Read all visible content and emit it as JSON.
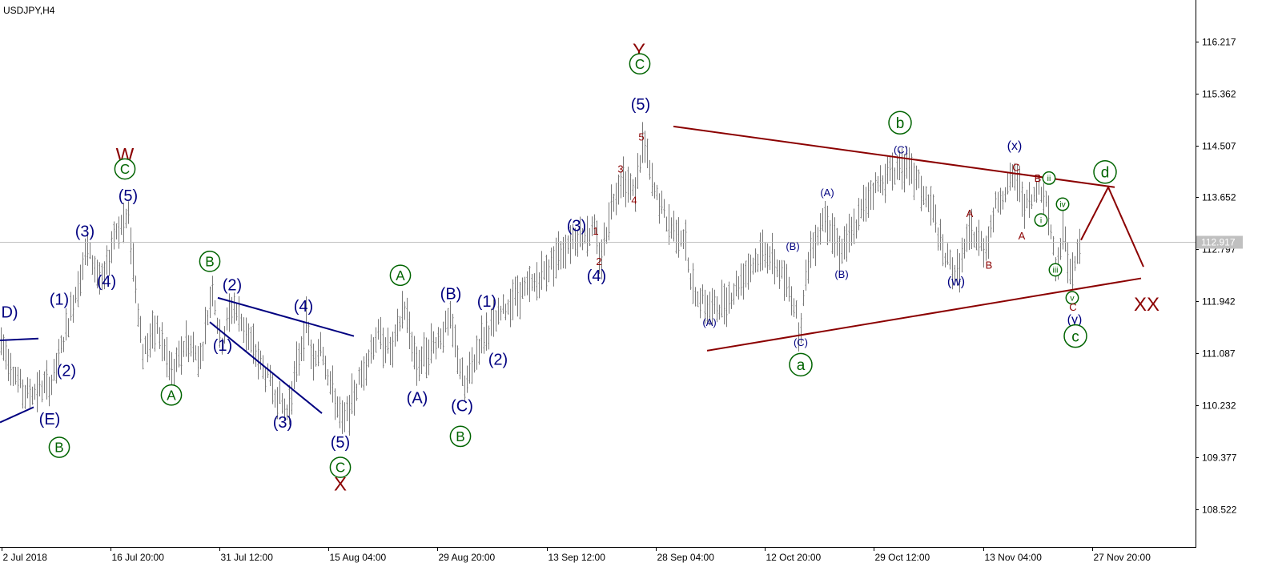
{
  "chart_data": {
    "type": "candlestick",
    "symbol_label": "USDJPY,H4",
    "current_price": "112.917",
    "y_ticks": [
      "116.217",
      "115.362",
      "114.507",
      "113.652",
      "112.797",
      "111.942",
      "111.087",
      "110.232",
      "109.377",
      "108.522"
    ],
    "x_ticks": [
      "2 Jul 2018",
      "16 Jul 20:00",
      "31 Jul 12:00",
      "15 Aug 04:00",
      "29 Aug 20:00",
      "13 Sep 12:00",
      "28 Sep 04:00",
      "12 Oct 20:00",
      "29 Oct 12:00",
      "13 Nov 04:00",
      "27 Nov 20:00"
    ],
    "ylim": [
      107.9,
      116.9
    ],
    "xlim": [
      0,
      1493
    ],
    "price_path": [
      [
        0,
        111.3
      ],
      [
        30,
        110.4
      ],
      [
        65,
        110.6
      ],
      [
        108,
        112.8
      ],
      [
        128,
        112.2
      ],
      [
        143,
        113.1
      ],
      [
        160,
        113.3
      ],
      [
        178,
        111.1
      ],
      [
        196,
        111.5
      ],
      [
        215,
        110.7
      ],
      [
        232,
        111.3
      ],
      [
        250,
        111.0
      ],
      [
        265,
        112.2
      ],
      [
        275,
        111.2
      ],
      [
        290,
        111.9
      ],
      [
        305,
        111.5
      ],
      [
        325,
        110.9
      ],
      [
        358,
        110.1
      ],
      [
        382,
        111.6
      ],
      [
        392,
        110.8
      ],
      [
        400,
        111.3
      ],
      [
        412,
        110.6
      ],
      [
        428,
        109.9
      ],
      [
        450,
        110.7
      ],
      [
        470,
        111.4
      ],
      [
        490,
        111.1
      ],
      [
        504,
        111.9
      ],
      [
        520,
        110.9
      ],
      [
        545,
        111.3
      ],
      [
        562,
        111.6
      ],
      [
        580,
        110.5
      ],
      [
        600,
        111.3
      ],
      [
        618,
        111.6
      ],
      [
        640,
        112.0
      ],
      [
        665,
        112.2
      ],
      [
        690,
        112.6
      ],
      [
        715,
        113.0
      ],
      [
        742,
        113.1
      ],
      [
        750,
        112.6
      ],
      [
        762,
        113.5
      ],
      [
        776,
        114.0
      ],
      [
        792,
        113.7
      ],
      [
        803,
        114.6
      ],
      [
        815,
        113.8
      ],
      [
        835,
        113.2
      ],
      [
        855,
        113.0
      ],
      [
        862,
        112.2
      ],
      [
        880,
        111.9
      ],
      [
        890,
        111.8
      ],
      [
        910,
        112.0
      ],
      [
        930,
        112.4
      ],
      [
        955,
        112.8
      ],
      [
        975,
        112.4
      ],
      [
        990,
        112.0
      ],
      [
        998,
        111.4
      ],
      [
        1010,
        112.7
      ],
      [
        1030,
        113.4
      ],
      [
        1048,
        112.8
      ],
      [
        1062,
        113.0
      ],
      [
        1085,
        113.7
      ],
      [
        1105,
        114.0
      ],
      [
        1127,
        114.2
      ],
      [
        1145,
        113.9
      ],
      [
        1165,
        113.4
      ],
      [
        1178,
        112.7
      ],
      [
        1195,
        112.4
      ],
      [
        1212,
        113.1
      ],
      [
        1230,
        112.8
      ],
      [
        1245,
        113.6
      ],
      [
        1268,
        114.0
      ],
      [
        1280,
        113.5
      ],
      [
        1290,
        113.6
      ],
      [
        1298,
        113.9
      ],
      [
        1308,
        113.5
      ],
      [
        1318,
        112.5
      ],
      [
        1328,
        113.1
      ],
      [
        1338,
        112.3
      ],
      [
        1348,
        112.9
      ]
    ],
    "trendlines": [
      {
        "color": "#000080",
        "points": [
          [
            0,
            111.3
          ],
          [
            48,
            111.33
          ]
        ]
      },
      {
        "color": "#000080",
        "points": [
          [
            0,
            109.95
          ],
          [
            42,
            110.2
          ]
        ]
      },
      {
        "color": "#000080",
        "points": [
          [
            272,
            112.0
          ],
          [
            442,
            111.37
          ]
        ]
      },
      {
        "color": "#000080",
        "points": [
          [
            262,
            111.6
          ],
          [
            402,
            110.1
          ]
        ]
      },
      {
        "color": "#8b0000",
        "points": [
          [
            841,
            114.82
          ],
          [
            1392,
            113.82
          ]
        ]
      },
      {
        "color": "#8b0000",
        "points": [
          [
            883,
            111.13
          ],
          [
            1425,
            112.32
          ]
        ]
      },
      {
        "color": "#8b0000",
        "points": [
          [
            1350,
            112.95
          ],
          [
            1384,
            113.82
          ],
          [
            1428,
            112.51
          ]
        ]
      }
    ],
    "wave_labels": [
      {
        "text": "D)",
        "x": 12,
        "y": 111.77,
        "color": "#000080",
        "size": 20,
        "circle": false
      },
      {
        "text": "(E)",
        "x": 62,
        "y": 110.01,
        "color": "#000080",
        "size": 20,
        "circle": false
      },
      {
        "text": "B",
        "x": 74,
        "y": 109.54,
        "color": "#006400",
        "size": 18,
        "circle": true
      },
      {
        "text": "(1)",
        "x": 74,
        "y": 111.98,
        "color": "#000080",
        "size": 20,
        "circle": false
      },
      {
        "text": "(2)",
        "x": 83,
        "y": 110.81,
        "color": "#000080",
        "size": 20,
        "circle": false
      },
      {
        "text": "(3)",
        "x": 106,
        "y": 113.1,
        "color": "#000080",
        "size": 20,
        "circle": false
      },
      {
        "text": "(4)",
        "x": 133,
        "y": 112.28,
        "color": "#000080",
        "size": 20,
        "circle": false
      },
      {
        "text": "W",
        "x": 156,
        "y": 114.36,
        "color": "#8b0000",
        "size": 24,
        "circle": false
      },
      {
        "text": "C",
        "x": 156,
        "y": 114.12,
        "color": "#006400",
        "size": 18,
        "circle": true
      },
      {
        "text": "(5)",
        "x": 160,
        "y": 113.69,
        "color": "#000080",
        "size": 20,
        "circle": false
      },
      {
        "text": "A",
        "x": 214,
        "y": 110.4,
        "color": "#006400",
        "size": 18,
        "circle": true
      },
      {
        "text": "B",
        "x": 262,
        "y": 112.6,
        "color": "#006400",
        "size": 18,
        "circle": true
      },
      {
        "text": "(2)",
        "x": 290,
        "y": 112.22,
        "color": "#000080",
        "size": 20,
        "circle": false
      },
      {
        "text": "(1)",
        "x": 278,
        "y": 111.22,
        "color": "#000080",
        "size": 20,
        "circle": false
      },
      {
        "text": "(4)",
        "x": 379,
        "y": 111.87,
        "color": "#000080",
        "size": 20,
        "circle": false
      },
      {
        "text": "(3)",
        "x": 353,
        "y": 109.96,
        "color": "#000080",
        "size": 20,
        "circle": false
      },
      {
        "text": "(5)",
        "x": 425,
        "y": 109.63,
        "color": "#000080",
        "size": 20,
        "circle": false
      },
      {
        "text": "C",
        "x": 425,
        "y": 109.21,
        "color": "#006400",
        "size": 18,
        "circle": true
      },
      {
        "text": "X",
        "x": 425,
        "y": 108.94,
        "color": "#8b0000",
        "size": 24,
        "circle": false
      },
      {
        "text": "A",
        "x": 500,
        "y": 112.37,
        "color": "#006400",
        "size": 18,
        "circle": true
      },
      {
        "text": "(B)",
        "x": 563,
        "y": 112.07,
        "color": "#000080",
        "size": 20,
        "circle": false
      },
      {
        "text": "(1)",
        "x": 608,
        "y": 111.95,
        "color": "#000080",
        "size": 20,
        "circle": false
      },
      {
        "text": "(A)",
        "x": 521,
        "y": 110.36,
        "color": "#000080",
        "size": 20,
        "circle": false
      },
      {
        "text": "(2)",
        "x": 622,
        "y": 110.99,
        "color": "#000080",
        "size": 20,
        "circle": false
      },
      {
        "text": "(C)",
        "x": 577,
        "y": 110.23,
        "color": "#000080",
        "size": 20,
        "circle": false
      },
      {
        "text": "B",
        "x": 575,
        "y": 109.72,
        "color": "#006400",
        "size": 18,
        "circle": true
      },
      {
        "text": "(3)",
        "x": 720,
        "y": 113.19,
        "color": "#000080",
        "size": 20,
        "circle": false
      },
      {
        "text": "(4)",
        "x": 745,
        "y": 112.37,
        "color": "#000080",
        "size": 20,
        "circle": false
      },
      {
        "text": "1",
        "x": 744,
        "y": 113.1,
        "color": "#8b0000",
        "size": 13,
        "circle": false
      },
      {
        "text": "2",
        "x": 748,
        "y": 112.6,
        "color": "#8b0000",
        "size": 13,
        "circle": false
      },
      {
        "text": "3",
        "x": 775,
        "y": 114.12,
        "color": "#8b0000",
        "size": 13,
        "circle": false
      },
      {
        "text": "4",
        "x": 792,
        "y": 113.61,
        "color": "#8b0000",
        "size": 13,
        "circle": false
      },
      {
        "text": "5",
        "x": 801,
        "y": 114.65,
        "color": "#8b0000",
        "size": 13,
        "circle": false
      },
      {
        "text": "Y",
        "x": 798,
        "y": 116.08,
        "color": "#8b0000",
        "size": 24,
        "circle": false
      },
      {
        "text": "C",
        "x": 799,
        "y": 115.85,
        "color": "#006400",
        "size": 18,
        "circle": true
      },
      {
        "text": "(5)",
        "x": 800,
        "y": 115.19,
        "color": "#000080",
        "size": 20,
        "circle": false
      },
      {
        "text": "b",
        "x": 1124,
        "y": 114.88,
        "color": "#006400",
        "size": 20,
        "circle": true
      },
      {
        "text": "(C)",
        "x": 1125,
        "y": 114.44,
        "color": "#000080",
        "size": 13,
        "circle": false
      },
      {
        "text": "(A)",
        "x": 1033,
        "y": 113.73,
        "color": "#000080",
        "size": 13,
        "circle": false
      },
      {
        "text": "(B)",
        "x": 990,
        "y": 112.85,
        "color": "#000080",
        "size": 13,
        "circle": false
      },
      {
        "text": "(B)",
        "x": 1051,
        "y": 112.39,
        "color": "#000080",
        "size": 13,
        "circle": false
      },
      {
        "text": "(A)",
        "x": 886,
        "y": 111.6,
        "color": "#000080",
        "size": 13,
        "circle": false
      },
      {
        "text": "(C)",
        "x": 1000,
        "y": 111.27,
        "color": "#000080",
        "size": 13,
        "circle": false
      },
      {
        "text": "a",
        "x": 1000,
        "y": 110.9,
        "color": "#006400",
        "size": 20,
        "circle": true
      },
      {
        "text": "(x)",
        "x": 1267,
        "y": 114.51,
        "color": "#000080",
        "size": 16,
        "circle": false
      },
      {
        "text": "C",
        "x": 1269,
        "y": 114.15,
        "color": "#8b0000",
        "size": 13,
        "circle": false
      },
      {
        "text": "B",
        "x": 1296,
        "y": 113.97,
        "color": "#8b0000",
        "size": 13,
        "circle": false
      },
      {
        "text": "ii",
        "x": 1310,
        "y": 113.97,
        "color": "#006400",
        "size": 11,
        "circle": true
      },
      {
        "text": "iv",
        "x": 1327,
        "y": 113.54,
        "color": "#006400",
        "size": 11,
        "circle": true
      },
      {
        "text": "i",
        "x": 1300,
        "y": 113.28,
        "color": "#006400",
        "size": 11,
        "circle": true
      },
      {
        "text": "A",
        "x": 1211,
        "y": 113.39,
        "color": "#8b0000",
        "size": 13,
        "circle": false
      },
      {
        "text": "A",
        "x": 1276,
        "y": 113.02,
        "color": "#8b0000",
        "size": 13,
        "circle": false
      },
      {
        "text": "B",
        "x": 1235,
        "y": 112.54,
        "color": "#8b0000",
        "size": 13,
        "circle": false
      },
      {
        "text": "iii",
        "x": 1318,
        "y": 112.46,
        "color": "#006400",
        "size": 11,
        "circle": true
      },
      {
        "text": "(w)",
        "x": 1194,
        "y": 112.28,
        "color": "#000080",
        "size": 16,
        "circle": false
      },
      {
        "text": "v",
        "x": 1339,
        "y": 112.0,
        "color": "#006400",
        "size": 11,
        "circle": true
      },
      {
        "text": "C",
        "x": 1340,
        "y": 111.85,
        "color": "#8b0000",
        "size": 13,
        "circle": false
      },
      {
        "text": "(y)",
        "x": 1342,
        "y": 111.65,
        "color": "#000080",
        "size": 16,
        "circle": false
      },
      {
        "text": "c",
        "x": 1343,
        "y": 111.37,
        "color": "#006400",
        "size": 20,
        "circle": true
      },
      {
        "text": "d",
        "x": 1380,
        "y": 114.07,
        "color": "#006400",
        "size": 20,
        "circle": true
      },
      {
        "text": "XX",
        "x": 1432,
        "y": 111.9,
        "color": "#8b0000",
        "size": 24,
        "circle": false
      }
    ]
  }
}
